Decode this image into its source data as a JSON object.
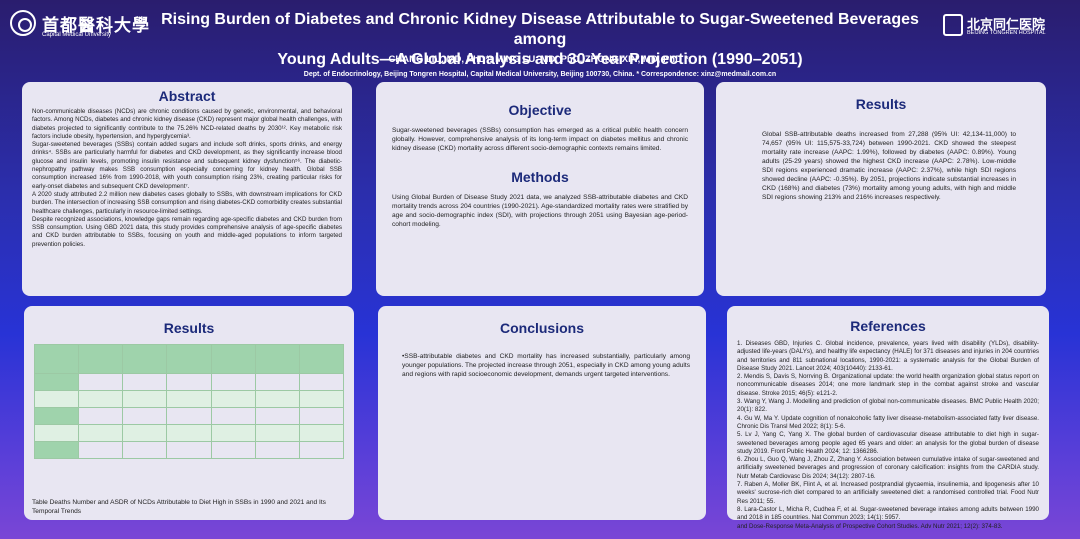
{
  "header": {
    "logo_left_cn": "首都醫科大學",
    "logo_left_en": "Capital Medical University",
    "logo_right_cn": "北京同仁医院",
    "logo_right_en": "BEIJING TONGREN HOSPITAL",
    "title_line1": "Rising Burden of Diabetes and Chronic Kidney Disease Attributable to Sugar-Sweetened Beverages among",
    "title_line2": "Young Adults—A Global Analysis and 30-Year Projection (1990–2051)",
    "authors": "CHANG LIU, MD, PhD*; MING LU, MD, PhD, ZHONG XIN, MD, PhD *;",
    "affiliation": "Dept. of Endocrinology, Beijing Tongren Hospital, Capital Medical University, Beijing 100730, China. * Correspondence: xinz@medmail.com.cn"
  },
  "abstract": {
    "heading": "Abstract",
    "p1": "Non-communicable diseases (NCDs) are chronic conditions caused by genetic, environmental, and behavioral factors. Among NCDs, diabetes and chronic kidney disease (CKD) represent major global health challenges, with diabetes projected to significantly contribute to the 75.26% NCD-related deaths by 2030¹². Key metabolic risk factors include obesity, hypertension, and hyperglycemia³.",
    "p2": "Sugar-sweetened beverages (SSBs) contain added sugars and include soft drinks, sports drinks, and energy drinks⁴. SSBs are particularly harmful for diabetes and CKD development, as they significantly increase blood glucose and insulin levels, promoting insulin resistance and subsequent kidney dysfunction⁵⁶. The diabetic-nephropathy pathway makes SSB consumption especially concerning for kidney health. Global SSB consumption increased 16% from 1990-2018, with youth consumption rising 23%, creating particular risks for early-onset diabetes and subsequent CKD development⁷.",
    "p3": "A 2020 study attributed 2.2 million new diabetes cases globally to SSBs, with downstream implications for CKD burden. The intersection of increasing SSB consumption and rising diabetes-CKD comorbidity creates substantial healthcare challenges, particularly in resource-limited settings.",
    "p4": "Despite recognized associations, knowledge gaps remain regarding age-specific diabetes and CKD burden from SSB consumption. Using GBD 2021 data, this study provides comprehensive analysis of age-specific diabetes and CKD burden attributable to SSBs, focusing on youth and middle-aged populations to inform targeted prevention policies."
  },
  "objective": {
    "heading": "Objective",
    "text": "Sugar-sweetened beverages (SSBs) consumption has emerged as a critical public health concern globally. However, comprehensive analysis of its long-term impact on diabetes mellitus and chronic kidney disease (CKD) mortality across different socio-demographic contexts remains limited."
  },
  "methods": {
    "heading": "Methods",
    "text": "Using Global Burden of Disease Study 2021 data, we analyzed SSB-attributable diabetes and CKD mortality trends across 204 countries (1990-2021). Age-standardized mortality rates were stratified by age and socio-demographic index (SDI), with projections through 2051 using Bayesian age-period-cohort modeling."
  },
  "results_top": {
    "heading": "Results",
    "text": "Global SSB-attributable deaths increased from 27,288 (95% UI: 42,134-11,000) to 74,657 (95% UI: 115,575-33,724) between 1990-2021. CKD showed the steepest mortality rate increase (AAPC: 1.99%), followed by diabetes (AAPC: 0.89%). Young adults (25-29 years) showed the highest CKD increase (AAPC: 2.78%). Low-middle SDI regions experienced dramatic increase (AAPC: 2.37%), while high SDI regions showed decline (AAPC: -0.35%). By 2051, projections indicate substantial increases in CKD (168%) and diabetes (73%) mortality among young adults, with high and middle SDI regions showing 213% and 216% increases respectively."
  },
  "results_bottom": {
    "heading": "Results",
    "table_rows": 5,
    "caption": "Table Deaths Number and ASDR of NCDs Attributable to Diet High in SSBs in 1990 and 2021 and Its Temporal Trends"
  },
  "conclusions": {
    "heading": "Conclusions",
    "text": "•SSB-attributable diabetes and CKD mortality has increased substantially, particularly among younger populations. The projected increase through 2051, especially in CKD among young adults and regions with rapid socioeconomic development, demands urgent targeted interventions."
  },
  "references": {
    "heading": "References",
    "items": [
      "1.      Diseases GBD, Injuries C. Global incidence, prevalence, years lived with disability (YLDs), disability-adjusted life-years (DALYs), and healthy life expectancy (HALE) for 371 diseases and injuries in 204 countries and territories and 811 subnational locations, 1990-2021: a systematic analysis for the Global Burden of Disease Study 2021. Lancet 2024; 403(10440): 2133-61.",
      "2.      Mendis S, Davis S, Norrving B. Organizational update: the world health organization global status report on noncommunicable diseases 2014; one more landmark step in the combat against stroke and vascular disease. Stroke 2015; 46(5): e121-2.",
      "3.      Wang Y, Wang J. Modelling and prediction of global non-communicable diseases. BMC Public Health 2020; 20(1): 822.",
      "4.      Gu W, Ma Y. Update cognition of nonalcoholic fatty liver disease-metabolism-associated fatty liver disease. Chronic Dis Transl Med 2022; 8(1): 5-6.",
      "5.      Lv J, Yang C, Yang X. The global burden of cardiovascular disease attributable to diet high in sugar-sweetened beverages among people aged 65 years and older: an analysis for the global burden of disease study 2019. Front Public Health 2024; 12: 1366286.",
      "6.      Zhou L, Guo Q, Wang J, Zhou Z, Zhang Y. Association between cumulative intake of sugar-sweetened and artificially sweetened beverages and progression of coronary calcification: insights from the CARDIA study. Nutr Metab Cardiovasc Dis 2024; 34(12): 2807-16.",
      "7.      Raben A, Moller BK, Flint A, et al. Increased postprandial glycaemia, insulinemia, and lipogenesis after 10 weeks' sucrose-rich diet compared to an artificially sweetened diet: a randomised controlled trial. Food Nutr Res 2011; 55.",
      "8.      Lara-Castor L, Micha R, Cudhea F, et al. Sugar-sweetened beverage intakes among adults between 1990 and 2018 in 185 countries. Nat Commun 2023; 14(1): 5957.",
      "and Dose-Response Meta-Analysis of Prospective Cohort Studies. Adv Nutr 2021; 12(2): 374-83."
    ]
  }
}
